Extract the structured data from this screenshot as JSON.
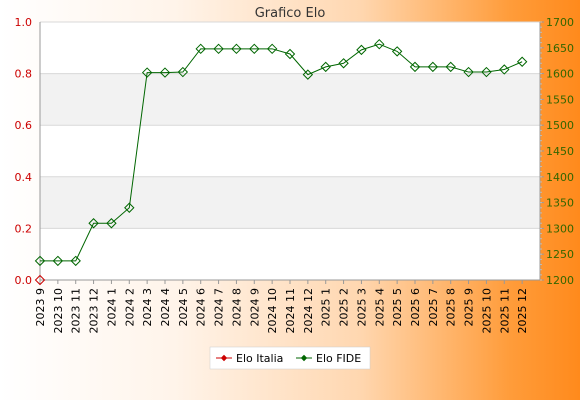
{
  "chart_data": {
    "type": "line",
    "title": "Grafico Elo",
    "categories": [
      "2023 9",
      "2023 10",
      "2023 11",
      "2023 12",
      "2024 1",
      "2024 2",
      "2024 3",
      "2024 4",
      "2024 5",
      "2024 6",
      "2024 7",
      "2024 8",
      "2024 9",
      "2024 10",
      "2024 11",
      "2024 12",
      "2025 1",
      "2025 2",
      "2025 3",
      "2025 4",
      "2025 5",
      "2025 6",
      "2025 7",
      "2025 8",
      "2025 9",
      "2025 10",
      "2025 11",
      "2025 12"
    ],
    "left_axis": {
      "ylim": [
        0,
        1.0
      ],
      "ticks": [
        "0.0",
        "0.2",
        "0.4",
        "0.6",
        "0.8",
        "1.0"
      ],
      "color": "#cc0000"
    },
    "right_axis": {
      "ylim": [
        1200,
        1700
      ],
      "ticks": [
        "1200",
        "1250",
        "1300",
        "1350",
        "1400",
        "1450",
        "1500",
        "1550",
        "1600",
        "1650",
        "1700"
      ],
      "color": "#336600"
    },
    "series": [
      {
        "name": "Elo Italia",
        "axis": "left",
        "color": "#cc0000",
        "values": [
          0,
          null,
          null,
          null,
          null,
          null,
          null,
          null,
          null,
          null,
          null,
          null,
          null,
          null,
          null,
          null,
          null,
          null,
          null,
          null,
          null,
          null,
          null,
          null,
          null,
          null,
          null,
          null
        ]
      },
      {
        "name": "Elo FIDE",
        "axis": "right",
        "color": "#006600",
        "values": [
          1237,
          1237,
          1237,
          1310,
          1310,
          1340,
          1602,
          1602,
          1603,
          1648,
          1648,
          1648,
          1648,
          1648,
          1638,
          1598,
          1613,
          1620,
          1646,
          1657,
          1643,
          1613,
          1613,
          1613,
          1603,
          1603,
          1608,
          1623
        ]
      }
    ],
    "grid": true,
    "legend_position": "bottom-center"
  }
}
